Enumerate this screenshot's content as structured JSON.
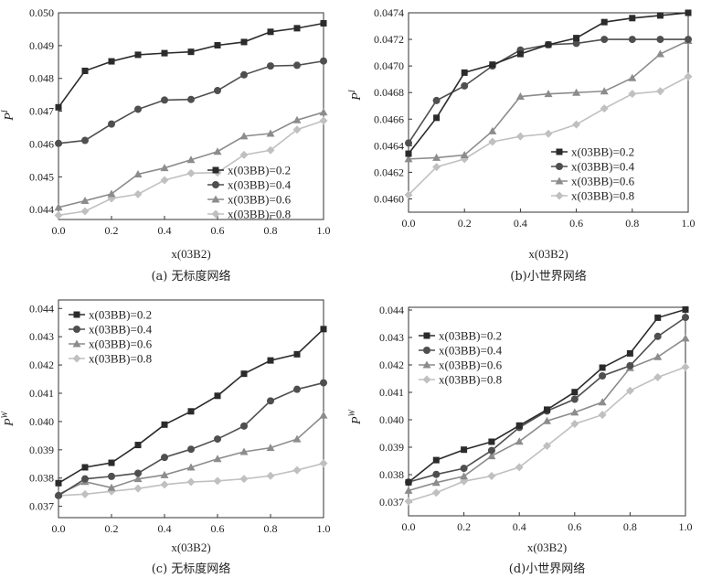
{
  "colors": [
    "#2b2b2b",
    "#4f4f4f",
    "#8c8c8c",
    "#c0c0c0"
  ],
  "chart_data": [
    {
      "type": "line",
      "caption": "(a) 无标度网络",
      "ylabel_base": "P",
      "ylabel_sup": "I",
      "xlabel": "x(03B2)",
      "xlim": [
        0,
        1
      ],
      "ylim": [
        0.0437,
        0.05
      ],
      "xticks": [
        "0.0",
        "0.2",
        "0.4",
        "0.6",
        "0.8",
        "1.0"
      ],
      "yticks": [
        0.044,
        0.045,
        0.046,
        0.047,
        0.048,
        0.049,
        0.05
      ],
      "ytick_labels": [
        "0.044",
        "0.045",
        "0.046",
        "0.047",
        "0.048",
        "0.049",
        "0.050"
      ],
      "legend_position": "bottom-right",
      "x": [
        0,
        0.1,
        0.2,
        0.3,
        0.4,
        0.5,
        0.6,
        0.7,
        0.8,
        0.9,
        1.0
      ],
      "series": [
        {
          "name": "x(03BB)=0.2",
          "marker": "square",
          "values": [
            0.04712,
            0.04823,
            0.04852,
            0.04872,
            0.04877,
            0.04881,
            0.04901,
            0.04911,
            0.04942,
            0.04953,
            0.04968
          ]
        },
        {
          "name": "x(03BB)=0.4",
          "marker": "circle",
          "values": [
            0.04602,
            0.04611,
            0.04661,
            0.04706,
            0.04734,
            0.04736,
            0.04763,
            0.04811,
            0.04838,
            0.0484,
            0.04853
          ]
        },
        {
          "name": "x(03BB)=0.6",
          "marker": "triangle",
          "values": [
            0.04407,
            0.04427,
            0.04448,
            0.04508,
            0.04527,
            0.04552,
            0.04577,
            0.04624,
            0.04632,
            0.04673,
            0.04697
          ]
        },
        {
          "name": "x(03BB)=0.8",
          "marker": "diamond",
          "values": [
            0.04383,
            0.04395,
            0.04434,
            0.04447,
            0.0449,
            0.04511,
            0.04513,
            0.04567,
            0.04581,
            0.04644,
            0.04671
          ]
        }
      ]
    },
    {
      "type": "line",
      "caption": "(b)小世界网络",
      "ylabel_base": "P",
      "ylabel_sup": "I",
      "xlabel": "x(03B2)",
      "xlim": [
        0,
        1
      ],
      "ylim": [
        0.0459,
        0.0474
      ],
      "xticks": [
        "0.0",
        "0.2",
        "0.4",
        "0.6",
        "0.8",
        "1.0"
      ],
      "yticks": [
        0.046,
        0.0462,
        0.0464,
        0.0466,
        0.0468,
        0.047,
        0.0472,
        0.0474
      ],
      "ytick_labels": [
        "0.0460",
        "0.0462",
        "0.0464",
        "0.0466",
        "0.0468",
        "0.0470",
        "0.0472",
        "0.0474"
      ],
      "legend_position": "bottom-right",
      "x": [
        0,
        0.1,
        0.2,
        0.3,
        0.4,
        0.5,
        0.6,
        0.7,
        0.8,
        0.9,
        1.0
      ],
      "series": [
        {
          "name": "x(03BB)=0.2",
          "marker": "square",
          "values": [
            0.04634,
            0.04661,
            0.04695,
            0.04701,
            0.04709,
            0.04716,
            0.04721,
            0.04733,
            0.04736,
            0.04738,
            0.0474
          ]
        },
        {
          "name": "x(03BB)=0.4",
          "marker": "circle",
          "values": [
            0.04642,
            0.04674,
            0.04685,
            0.047,
            0.04712,
            0.04716,
            0.04717,
            0.0472,
            0.0472,
            0.0472,
            0.0472
          ]
        },
        {
          "name": "x(03BB)=0.6",
          "marker": "triangle",
          "values": [
            0.0463,
            0.04631,
            0.04633,
            0.04651,
            0.04677,
            0.04679,
            0.0468,
            0.04681,
            0.04691,
            0.04709,
            0.04719
          ]
        },
        {
          "name": "x(03BB)=0.8",
          "marker": "diamond",
          "values": [
            0.04603,
            0.04624,
            0.0463,
            0.04643,
            0.04647,
            0.04649,
            0.04656,
            0.04668,
            0.04679,
            0.04681,
            0.04692
          ]
        }
      ]
    },
    {
      "type": "line",
      "caption": "(c) 无标度网络",
      "ylabel_base": "P",
      "ylabel_sup": "W",
      "xlabel": "x(03B2)",
      "xlim": [
        0,
        1
      ],
      "ylim": [
        0.0366,
        0.0443
      ],
      "xticks": [
        "0.0",
        "0.2",
        "0.4",
        "0.6",
        "0.8",
        "1.0"
      ],
      "yticks": [
        0.037,
        0.038,
        0.039,
        0.04,
        0.041,
        0.042,
        0.043,
        0.044
      ],
      "ytick_labels": [
        "0.037",
        "0.038",
        "0.039",
        "0.040",
        "0.041",
        "0.042",
        "0.043",
        "0.044"
      ],
      "legend_position": "top-left",
      "x": [
        0,
        0.1,
        0.2,
        0.3,
        0.4,
        0.5,
        0.6,
        0.7,
        0.8,
        0.9,
        1.0
      ],
      "series": [
        {
          "name": "x(03BB)=0.2",
          "marker": "square",
          "values": [
            0.03782,
            0.03838,
            0.03854,
            0.03917,
            0.03989,
            0.04036,
            0.04091,
            0.04169,
            0.04216,
            0.04238,
            0.04327
          ]
        },
        {
          "name": "x(03BB)=0.4",
          "marker": "circle",
          "values": [
            0.03738,
            0.03797,
            0.03806,
            0.03817,
            0.03873,
            0.03902,
            0.03938,
            0.03984,
            0.04073,
            0.04114,
            0.04137
          ]
        },
        {
          "name": "x(03BB)=0.6",
          "marker": "triangle",
          "values": [
            0.03743,
            0.03787,
            0.03766,
            0.03797,
            0.03811,
            0.03838,
            0.03868,
            0.03893,
            0.03907,
            0.03938,
            0.04022
          ]
        },
        {
          "name": "x(03BB)=0.8",
          "marker": "diamond",
          "values": [
            0.03738,
            0.03743,
            0.03753,
            0.03763,
            0.03777,
            0.03786,
            0.0379,
            0.03797,
            0.03808,
            0.03828,
            0.03852
          ]
        }
      ]
    },
    {
      "type": "line",
      "caption": "(d)小世界网络",
      "ylabel_base": "P",
      "ylabel_sup": "W",
      "xlabel": "x(03B2)",
      "xlim": [
        0,
        1
      ],
      "ylim": [
        0.0365,
        0.0441
      ],
      "xticks": [
        "0.0",
        "0.2",
        "0.4",
        "0.6",
        "0.8",
        "1.0"
      ],
      "yticks": [
        0.037,
        0.038,
        0.039,
        0.04,
        0.041,
        0.042,
        0.043,
        0.044
      ],
      "ytick_labels": [
        "0.037",
        "0.038",
        "0.039",
        "0.040",
        "0.041",
        "0.042",
        "0.043",
        "0.044"
      ],
      "legend_position": "top-left",
      "x": [
        0,
        0.1,
        0.2,
        0.3,
        0.4,
        0.5,
        0.6,
        0.7,
        0.8,
        0.9,
        1.0
      ],
      "series": [
        {
          "name": "x(03BB)=0.2",
          "marker": "square",
          "values": [
            0.03772,
            0.03853,
            0.03891,
            0.0392,
            0.03979,
            0.04037,
            0.04101,
            0.0419,
            0.04242,
            0.04372,
            0.04402
          ]
        },
        {
          "name": "x(03BB)=0.4",
          "marker": "circle",
          "values": [
            0.03773,
            0.03801,
            0.03823,
            0.03888,
            0.03972,
            0.04032,
            0.04075,
            0.0416,
            0.04197,
            0.04304,
            0.04373
          ]
        },
        {
          "name": "x(03BB)=0.6",
          "marker": "triangle",
          "values": [
            0.03742,
            0.03771,
            0.03794,
            0.03868,
            0.03921,
            0.03996,
            0.04027,
            0.04064,
            0.04189,
            0.04229,
            0.04297
          ]
        },
        {
          "name": "x(03BB)=0.8",
          "marker": "diamond",
          "values": [
            0.03703,
            0.03734,
            0.03776,
            0.03795,
            0.03827,
            0.03905,
            0.03985,
            0.04018,
            0.04106,
            0.04155,
            0.04192
          ]
        }
      ]
    }
  ]
}
